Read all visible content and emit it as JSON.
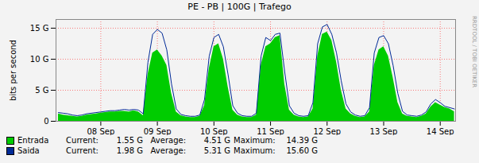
{
  "chart_data": {
    "type": "line",
    "title": "PE - PB | 100G | Trafego",
    "y_label": "bits per second",
    "side_text": "RRDTOOL / TOBI OETIKER",
    "x": [
      -6,
      -4,
      -2,
      0,
      2,
      4,
      6,
      8,
      10,
      12,
      14,
      16,
      18,
      20,
      22,
      24,
      26,
      28,
      30,
      32,
      34,
      36,
      38,
      40,
      42,
      44,
      46,
      48,
      50,
      52,
      54,
      56,
      58,
      60,
      62,
      64,
      66,
      68,
      70,
      72,
      74,
      76,
      78,
      80,
      82,
      84,
      86,
      88,
      90,
      92,
      94,
      96,
      98,
      100,
      102,
      104,
      106,
      108,
      110,
      112,
      114,
      116,
      118,
      120,
      122,
      124,
      126,
      128,
      130,
      132,
      134,
      136,
      138,
      140,
      142,
      144,
      146,
      148,
      150,
      152,
      154,
      156,
      158,
      160,
      162
    ],
    "xlim": [
      -7,
      162.5
    ],
    "xticks": [
      {
        "value": 12,
        "label": "08 Sep"
      },
      {
        "value": 36,
        "label": "09 Sep"
      },
      {
        "value": 60,
        "label": "10 Sep"
      },
      {
        "value": 84,
        "label": "11 Sep"
      },
      {
        "value": 108,
        "label": "12 Sep"
      },
      {
        "value": 132,
        "label": "13 Sep"
      },
      {
        "value": 156,
        "label": "14 Sep"
      }
    ],
    "ylim": [
      0,
      16.4
    ],
    "yticks": [
      0,
      {
        "value": 5,
        "label": "5 G"
      },
      {
        "value": 10,
        "label": "10 G"
      },
      {
        "value": 15,
        "label": "15 G"
      }
    ],
    "grid": true,
    "series": [
      {
        "name": "Entrada",
        "type": "area",
        "color": "#00cc00",
        "values": [
          1.2,
          1.0,
          0.9,
          0.8,
          0.7,
          0.8,
          1.0,
          1.1,
          1.2,
          1.3,
          1.4,
          1.5,
          1.5,
          1.6,
          1.6,
          1.5,
          1.7,
          1.5,
          0.9,
          7.5,
          11.0,
          11.5,
          10.5,
          9.0,
          4.5,
          1.5,
          0.9,
          0.7,
          0.6,
          0.6,
          0.8,
          2.5,
          8.5,
          12.0,
          12.5,
          10.0,
          5.5,
          1.8,
          1.0,
          0.7,
          0.6,
          0.6,
          1.0,
          9.0,
          12.0,
          12.5,
          13.5,
          13.8,
          6.0,
          1.8,
          1.0,
          0.7,
          0.6,
          0.7,
          2.0,
          10.5,
          14.0,
          14.39,
          13.0,
          9.5,
          5.0,
          2.0,
          1.2,
          0.8,
          0.6,
          0.7,
          1.5,
          9.0,
          11.5,
          12.0,
          10.5,
          7.0,
          3.0,
          1.2,
          0.8,
          0.7,
          0.6,
          0.8,
          1.2,
          2.3,
          3.0,
          2.6,
          2.2,
          2.0,
          1.55
        ],
        "stats": {
          "labels": [
            "Current:",
            "Average:",
            "Maximum:"
          ],
          "values": [
            1.55,
            4.51,
            14.39
          ],
          "value_labels": [
            "1.55 G",
            "4.51 G",
            "14.39 G"
          ]
        }
      },
      {
        "name": "Saida",
        "type": "line",
        "color": "#002a97",
        "values": [
          1.4,
          1.3,
          1.2,
          1.0,
          0.9,
          1.0,
          1.2,
          1.3,
          1.4,
          1.5,
          1.6,
          1.7,
          1.7,
          1.8,
          1.9,
          1.8,
          1.9,
          1.8,
          1.2,
          9.5,
          14.0,
          14.8,
          14.2,
          11.5,
          6.0,
          2.0,
          1.1,
          0.9,
          0.8,
          0.8,
          1.0,
          3.5,
          10.5,
          13.5,
          14.0,
          12.0,
          7.5,
          2.5,
          1.3,
          0.9,
          0.8,
          0.8,
          1.3,
          10.5,
          13.5,
          13.0,
          14.0,
          14.2,
          8.0,
          2.5,
          1.3,
          0.9,
          0.8,
          0.9,
          3.0,
          12.5,
          15.2,
          15.6,
          14.0,
          11.0,
          6.5,
          2.8,
          1.5,
          1.0,
          0.8,
          0.9,
          2.2,
          11.0,
          13.5,
          13.8,
          12.5,
          9.0,
          4.5,
          1.6,
          1.0,
          0.9,
          0.8,
          1.0,
          1.5,
          2.8,
          3.5,
          3.0,
          2.4,
          2.2,
          1.98
        ],
        "stats": {
          "labels": [
            "Current:",
            "Average:",
            "Maximum:"
          ],
          "values": [
            1.98,
            5.31,
            15.6
          ],
          "value_labels": [
            "1.98 G",
            "5.31 G",
            "15.60 G"
          ]
        }
      }
    ]
  }
}
